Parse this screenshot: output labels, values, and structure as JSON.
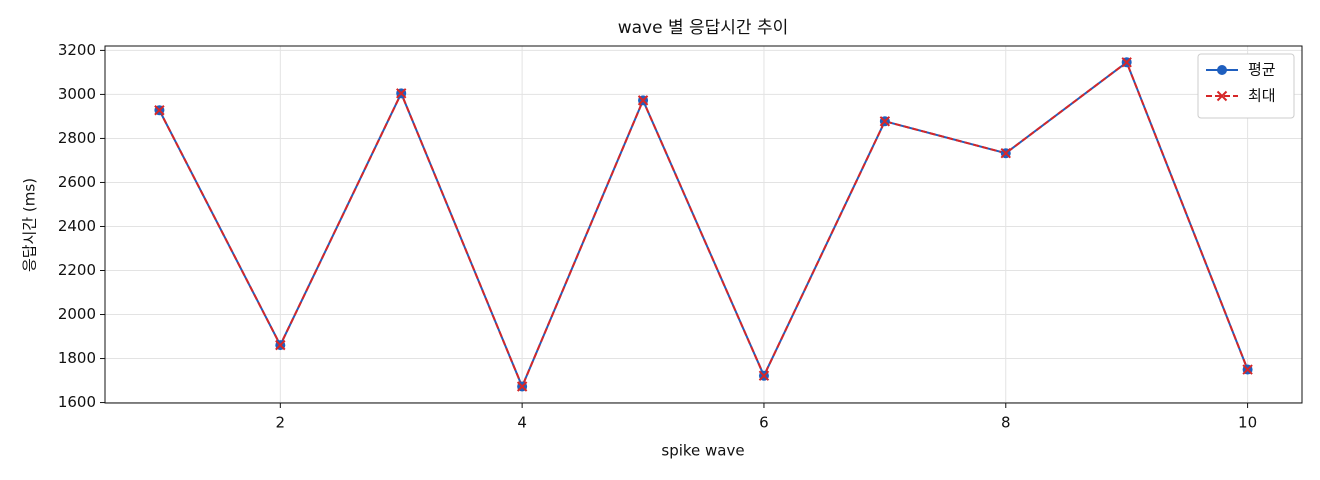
{
  "chart_data": {
    "type": "line",
    "title": "wave 별 응답시간 추이",
    "x_label": "spike wave",
    "y_label": "응답시간 (ms)",
    "x": [
      1,
      2,
      3,
      4,
      5,
      6,
      7,
      8,
      9,
      10
    ],
    "series": [
      {
        "name": "평균",
        "color": "#1f5fbf",
        "line_style": "solid",
        "marker": "circle",
        "values": [
          2928,
          1861,
          3005,
          1673,
          2973,
          1722,
          2878,
          2733,
          3146,
          1750
        ]
      },
      {
        "name": "최대",
        "color": "#d62728",
        "line_style": "dashed",
        "marker": "x",
        "values": [
          2928,
          1861,
          3005,
          1673,
          2973,
          1722,
          2878,
          2733,
          3146,
          1750
        ]
      }
    ],
    "xlim": [
      0.55,
      10.45
    ],
    "ylim": [
      1598,
      3220
    ],
    "xticks": [
      2,
      4,
      6,
      8,
      10
    ],
    "yticks": [
      1600,
      1800,
      2000,
      2200,
      2400,
      2600,
      2800,
      3000,
      3200
    ],
    "grid": true,
    "legend_position": "upper-right"
  }
}
